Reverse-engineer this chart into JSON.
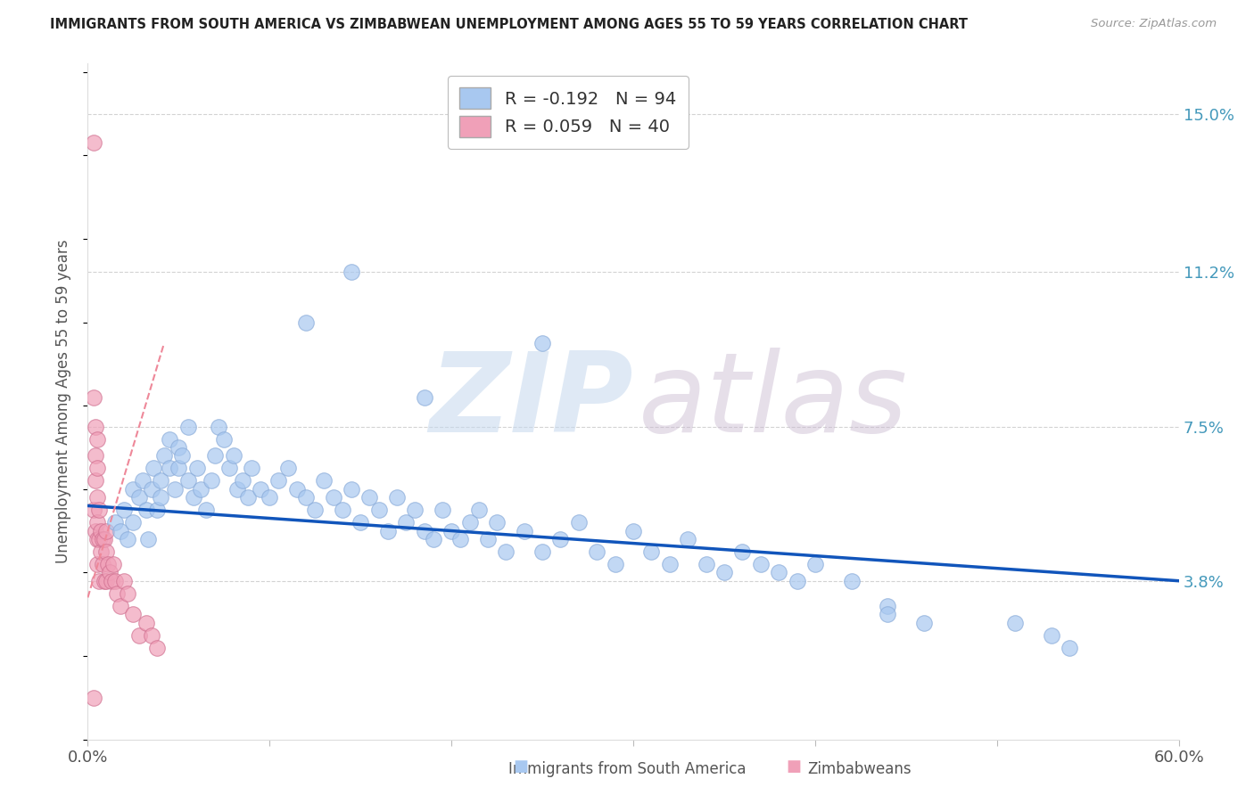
{
  "title": "IMMIGRANTS FROM SOUTH AMERICA VS ZIMBABWEAN UNEMPLOYMENT AMONG AGES 55 TO 59 YEARS CORRELATION CHART",
  "source": "Source: ZipAtlas.com",
  "ylabel": "Unemployment Among Ages 55 to 59 years",
  "blue_R": -0.192,
  "blue_N": 94,
  "pink_R": 0.059,
  "pink_N": 40,
  "blue_label": "Immigrants from South America",
  "pink_label": "Zimbabweans",
  "blue_color": "#a8c8f0",
  "blue_edge": "#88aad8",
  "pink_color": "#f0a0b8",
  "pink_edge": "#d07090",
  "blue_line_color": "#1155bb",
  "pink_line_color": "#ee8899",
  "background": "#ffffff",
  "grid_color": "#c8c8c8",
  "y_ticks": [
    0.038,
    0.075,
    0.112,
    0.15
  ],
  "y_tick_labels": [
    "3.8%",
    "7.5%",
    "11.2%",
    "15.0%"
  ],
  "xlim": [
    0.0,
    0.6
  ],
  "ylim": [
    0.0,
    0.162
  ],
  "blue_trend_x0": 0.0,
  "blue_trend_y0": 0.056,
  "blue_trend_x1": 0.6,
  "blue_trend_y1": 0.038,
  "pink_trend_x0": 0.0,
  "pink_trend_y0": 0.034,
  "pink_trend_x1": 0.042,
  "pink_trend_y1": 0.095,
  "blue_scatter_x": [
    0.015,
    0.018,
    0.02,
    0.022,
    0.025,
    0.025,
    0.028,
    0.03,
    0.032,
    0.033,
    0.035,
    0.036,
    0.038,
    0.04,
    0.04,
    0.042,
    0.045,
    0.045,
    0.048,
    0.05,
    0.05,
    0.052,
    0.055,
    0.055,
    0.058,
    0.06,
    0.062,
    0.065,
    0.068,
    0.07,
    0.072,
    0.075,
    0.078,
    0.08,
    0.082,
    0.085,
    0.088,
    0.09,
    0.095,
    0.1,
    0.105,
    0.11,
    0.115,
    0.12,
    0.125,
    0.13,
    0.135,
    0.14,
    0.145,
    0.15,
    0.155,
    0.16,
    0.165,
    0.17,
    0.175,
    0.18,
    0.185,
    0.19,
    0.195,
    0.2,
    0.205,
    0.21,
    0.215,
    0.22,
    0.225,
    0.23,
    0.24,
    0.25,
    0.26,
    0.27,
    0.28,
    0.29,
    0.3,
    0.31,
    0.32,
    0.33,
    0.34,
    0.35,
    0.36,
    0.37,
    0.38,
    0.39,
    0.4,
    0.42,
    0.44,
    0.46,
    0.185,
    0.25,
    0.145,
    0.12,
    0.44,
    0.51,
    0.53,
    0.54
  ],
  "blue_scatter_y": [
    0.052,
    0.05,
    0.055,
    0.048,
    0.052,
    0.06,
    0.058,
    0.062,
    0.055,
    0.048,
    0.06,
    0.065,
    0.055,
    0.058,
    0.062,
    0.068,
    0.065,
    0.072,
    0.06,
    0.065,
    0.07,
    0.068,
    0.075,
    0.062,
    0.058,
    0.065,
    0.06,
    0.055,
    0.062,
    0.068,
    0.075,
    0.072,
    0.065,
    0.068,
    0.06,
    0.062,
    0.058,
    0.065,
    0.06,
    0.058,
    0.062,
    0.065,
    0.06,
    0.058,
    0.055,
    0.062,
    0.058,
    0.055,
    0.06,
    0.052,
    0.058,
    0.055,
    0.05,
    0.058,
    0.052,
    0.055,
    0.05,
    0.048,
    0.055,
    0.05,
    0.048,
    0.052,
    0.055,
    0.048,
    0.052,
    0.045,
    0.05,
    0.045,
    0.048,
    0.052,
    0.045,
    0.042,
    0.05,
    0.045,
    0.042,
    0.048,
    0.042,
    0.04,
    0.045,
    0.042,
    0.04,
    0.038,
    0.042,
    0.038,
    0.032,
    0.028,
    0.082,
    0.095,
    0.112,
    0.1,
    0.03,
    0.028,
    0.025,
    0.022
  ],
  "pink_scatter_x": [
    0.003,
    0.003,
    0.003,
    0.004,
    0.004,
    0.004,
    0.004,
    0.005,
    0.005,
    0.005,
    0.005,
    0.005,
    0.005,
    0.006,
    0.006,
    0.006,
    0.007,
    0.007,
    0.008,
    0.008,
    0.009,
    0.009,
    0.01,
    0.01,
    0.01,
    0.011,
    0.012,
    0.013,
    0.014,
    0.015,
    0.016,
    0.018,
    0.02,
    0.022,
    0.025,
    0.028,
    0.032,
    0.035,
    0.038,
    0.003
  ],
  "pink_scatter_y": [
    0.143,
    0.082,
    0.055,
    0.075,
    0.068,
    0.062,
    0.05,
    0.072,
    0.065,
    0.058,
    0.052,
    0.048,
    0.042,
    0.055,
    0.048,
    0.038,
    0.05,
    0.045,
    0.048,
    0.042,
    0.048,
    0.038,
    0.05,
    0.045,
    0.038,
    0.042,
    0.04,
    0.038,
    0.042,
    0.038,
    0.035,
    0.032,
    0.038,
    0.035,
    0.03,
    0.025,
    0.028,
    0.025,
    0.022,
    0.01
  ]
}
